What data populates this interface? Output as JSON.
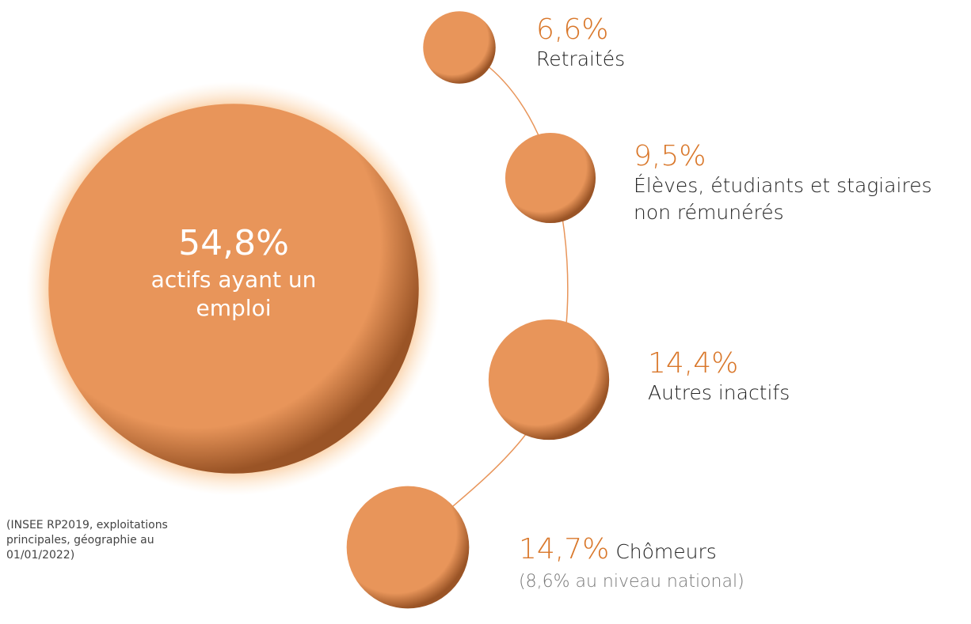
{
  "chart_data": {
    "type": "bubble",
    "categories": [
      "actifs ayant un emploi",
      "Retraités",
      "Élèves, étudiants et stagiaires non rémunérés",
      "Autres inactifs",
      "Chômeurs"
    ],
    "values": [
      54.8,
      6.6,
      9.5,
      14.4,
      14.7
    ],
    "value_labels": [
      "54,8%",
      "6,6%",
      "9,5%",
      "14,4%",
      "14,7%"
    ],
    "color": "#e8955a",
    "label_color": "#d9772a",
    "annotation": "(8,6% au niveau national)",
    "source": "(INSEE RP2019, exploitations principales, géographie au 01/01/2022)"
  }
}
